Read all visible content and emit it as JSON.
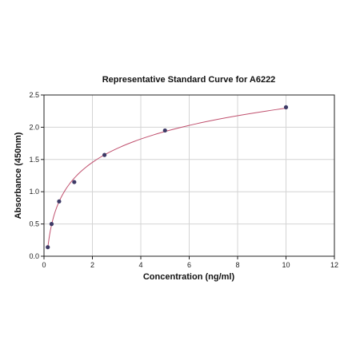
{
  "chart_data": {
    "type": "scatter",
    "title": "Representative Standard Curve for A6222",
    "xlabel": "Concentration (ng/ml)",
    "ylabel": "Absorbance (450nm)",
    "xlim": [
      0,
      12
    ],
    "ylim": [
      0,
      2.5
    ],
    "x_ticks": [
      0,
      2,
      4,
      6,
      8,
      10,
      12
    ],
    "y_ticks": [
      0.0,
      0.5,
      1.0,
      1.5,
      2.0,
      2.5
    ],
    "y_tick_labels": [
      "0.0",
      "0.5",
      "1.0",
      "1.5",
      "2.0",
      "2.5"
    ],
    "grid": true,
    "series": [
      {
        "points": [
          {
            "x": 0.156,
            "y": 0.14
          },
          {
            "x": 0.313,
            "y": 0.5
          },
          {
            "x": 0.625,
            "y": 0.85
          },
          {
            "x": 1.25,
            "y": 1.15
          },
          {
            "x": 2.5,
            "y": 1.57
          },
          {
            "x": 5.0,
            "y": 1.95
          },
          {
            "x": 10.0,
            "y": 2.31
          }
        ],
        "fit": "log curve through points"
      }
    ],
    "colors": {
      "point": "#3d3a66",
      "curve": "#c0506e",
      "grid": "#d4d4d4",
      "axis": "#222222"
    }
  }
}
